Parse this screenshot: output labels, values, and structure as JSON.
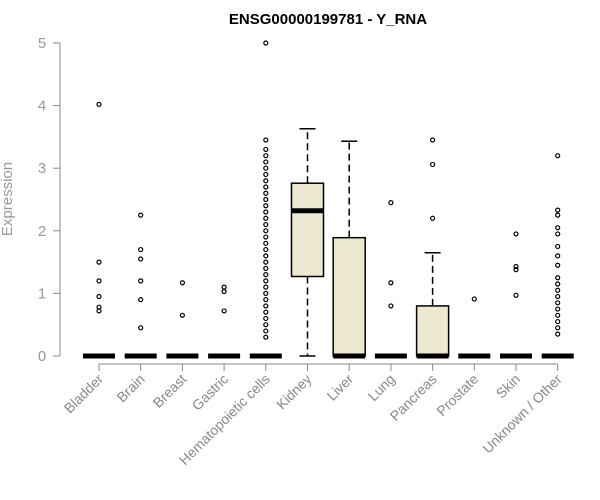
{
  "chart_data": {
    "type": "boxplot",
    "title": "ENSG00000199781 - Y_RNA",
    "xlabel": "",
    "ylabel": "Expression",
    "ylim": [
      0,
      5
    ],
    "yticks": [
      "0",
      "1",
      "2",
      "3",
      "4",
      "5"
    ],
    "grid": false,
    "box_color": "#ede8d0",
    "line_color": "#000000",
    "categories": [
      "Bladder",
      "Brain",
      "Breast",
      "Gastric",
      "Hematopoietic cells",
      "Kidney",
      "Liver",
      "Lung",
      "Pancreas",
      "Prostate",
      "Skin",
      "Unknown / Other"
    ],
    "boxes": [
      {
        "min": 0,
        "q1": 0,
        "median": 0,
        "q3": 0,
        "max": 0,
        "outliers": [
          0.72,
          0.78,
          0.95,
          1.2,
          1.5,
          4.02
        ]
      },
      {
        "min": 0,
        "q1": 0,
        "median": 0,
        "q3": 0,
        "max": 0,
        "outliers": [
          0.45,
          0.9,
          1.2,
          1.55,
          1.7,
          2.25
        ]
      },
      {
        "min": 0,
        "q1": 0,
        "median": 0,
        "q3": 0,
        "max": 0,
        "outliers": [
          0.65,
          1.17
        ]
      },
      {
        "min": 0,
        "q1": 0,
        "median": 0,
        "q3": 0,
        "max": 0,
        "outliers": [
          0.72,
          1.03,
          1.1
        ]
      },
      {
        "min": 0,
        "q1": 0,
        "median": 0,
        "q3": 0,
        "max": 0,
        "outliers": [
          0.3,
          0.4,
          0.5,
          0.6,
          0.7,
          0.8,
          0.9,
          1.0,
          1.1,
          1.2,
          1.3,
          1.4,
          1.5,
          1.6,
          1.7,
          1.8,
          1.9,
          2.0,
          2.1,
          2.2,
          2.3,
          2.4,
          2.5,
          2.6,
          2.7,
          2.8,
          2.9,
          3.0,
          3.1,
          3.2,
          3.3,
          3.45,
          5.0
        ]
      },
      {
        "min": 0,
        "q1": 1.27,
        "median": 2.32,
        "q3": 2.76,
        "max": 3.63,
        "outliers": []
      },
      {
        "min": 0,
        "q1": 0,
        "median": 0,
        "q3": 1.89,
        "max": 3.43,
        "outliers": []
      },
      {
        "min": 0,
        "q1": 0,
        "median": 0,
        "q3": 0,
        "max": 0,
        "outliers": [
          0.8,
          1.17,
          2.45
        ]
      },
      {
        "min": 0,
        "q1": 0,
        "median": 0,
        "q3": 0.8,
        "max": 1.65,
        "outliers": [
          2.2,
          3.06,
          3.45
        ]
      },
      {
        "min": 0,
        "q1": 0,
        "median": 0,
        "q3": 0,
        "max": 0,
        "outliers": [
          0.91
        ]
      },
      {
        "min": 0,
        "q1": 0,
        "median": 0,
        "q3": 0,
        "max": 0,
        "outliers": [
          0.97,
          1.38,
          1.43,
          1.95
        ]
      },
      {
        "min": 0,
        "q1": 0,
        "median": 0,
        "q3": 0,
        "max": 0,
        "outliers": [
          0.35,
          0.45,
          0.55,
          0.65,
          0.75,
          0.85,
          0.95,
          1.05,
          1.15,
          1.25,
          1.45,
          1.6,
          1.75,
          1.95,
          2.05,
          2.25,
          2.33,
          3.2
        ]
      }
    ]
  }
}
